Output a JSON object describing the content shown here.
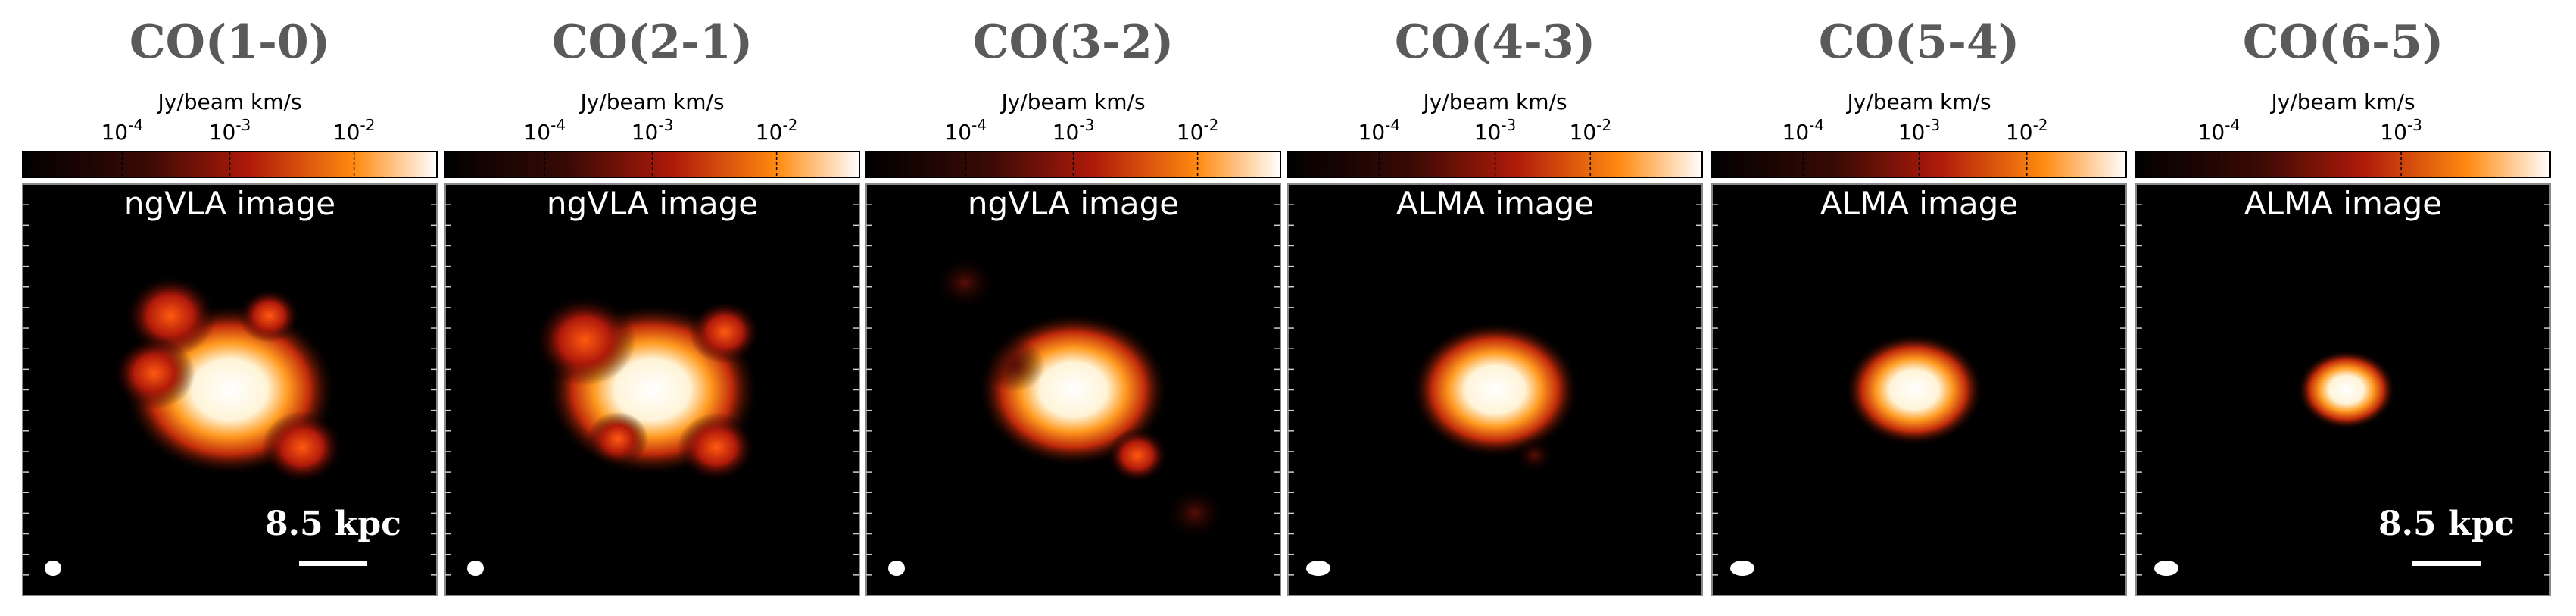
{
  "panels": [
    {
      "title": "CO(1-0)",
      "colorbar": {
        "label": "Jy/beam km/s",
        "ticks": [
          {
            "base": "10",
            "exp": "-4"
          },
          {
            "base": "10",
            "exp": "-3"
          },
          {
            "base": "10",
            "exp": "-2"
          }
        ]
      },
      "image_label": "ngVLA image",
      "scale_bar": "8.5 kpc"
    },
    {
      "title": "CO(2-1)",
      "colorbar": {
        "label": "Jy/beam km/s",
        "ticks": [
          {
            "base": "10",
            "exp": "-4"
          },
          {
            "base": "10",
            "exp": "-3"
          },
          {
            "base": "10",
            "exp": "-2"
          }
        ]
      },
      "image_label": "ngVLA image"
    },
    {
      "title": "CO(3-2)",
      "colorbar": {
        "label": "Jy/beam km/s",
        "ticks": [
          {
            "base": "10",
            "exp": "-4"
          },
          {
            "base": "10",
            "exp": "-3"
          },
          {
            "base": "10",
            "exp": "-2"
          }
        ]
      },
      "image_label": "ngVLA image"
    },
    {
      "title": "CO(4-3)",
      "colorbar": {
        "label": "Jy/beam km/s",
        "ticks": [
          {
            "base": "10",
            "exp": "-4"
          },
          {
            "base": "10",
            "exp": "-3"
          },
          {
            "base": "10",
            "exp": "-2"
          }
        ]
      },
      "image_label": "ALMA image"
    },
    {
      "title": "CO(5-4)",
      "colorbar": {
        "label": "Jy/beam km/s",
        "ticks": [
          {
            "base": "10",
            "exp": "-4"
          },
          {
            "base": "10",
            "exp": "-3"
          },
          {
            "base": "10",
            "exp": "-2"
          }
        ]
      },
      "image_label": "ALMA image"
    },
    {
      "title": "CO(6-5)",
      "colorbar": {
        "label": "Jy/beam km/s",
        "ticks": [
          {
            "base": "10",
            "exp": "-4"
          },
          {
            "base": "10",
            "exp": "-3"
          }
        ]
      },
      "image_label": "ALMA image",
      "scale_bar": "8.5 kpc"
    }
  ]
}
